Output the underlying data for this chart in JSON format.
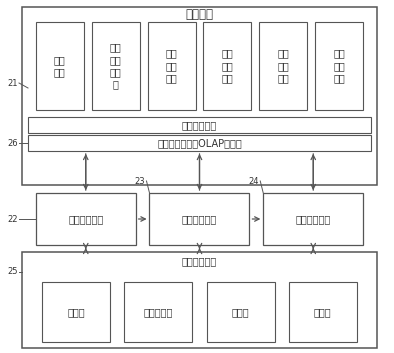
{
  "bg_color": "#ffffff",
  "title_datacenter": "数据中心",
  "data_boxes": [
    "卡口\n数据",
    "道路\n检测\n器数\n据",
    "手机\n信令\n数据",
    "视频\n信息\n数据",
    "基础\n设施\n数据",
    "交通\n路网\n数据"
  ],
  "label_data_access": "数据接入模块",
  "label_olap": "联机分析处理（OLAP）模块",
  "label_tech_support": "技术支持模块",
  "middle_boxes": [
    "状态预警模块",
    "挖掘分析模块",
    "辅助决策模块"
  ],
  "tech_boxes": [
    "方法库",
    "交通模型库",
    "案例库",
    "方案库"
  ],
  "box_edge_color": "#555555",
  "arrow_color": "#555555",
  "text_color": "#333333",
  "font_size_title": 8.5,
  "font_size_box": 7.0,
  "font_size_small_box": 7.0,
  "font_size_label": 6.0
}
